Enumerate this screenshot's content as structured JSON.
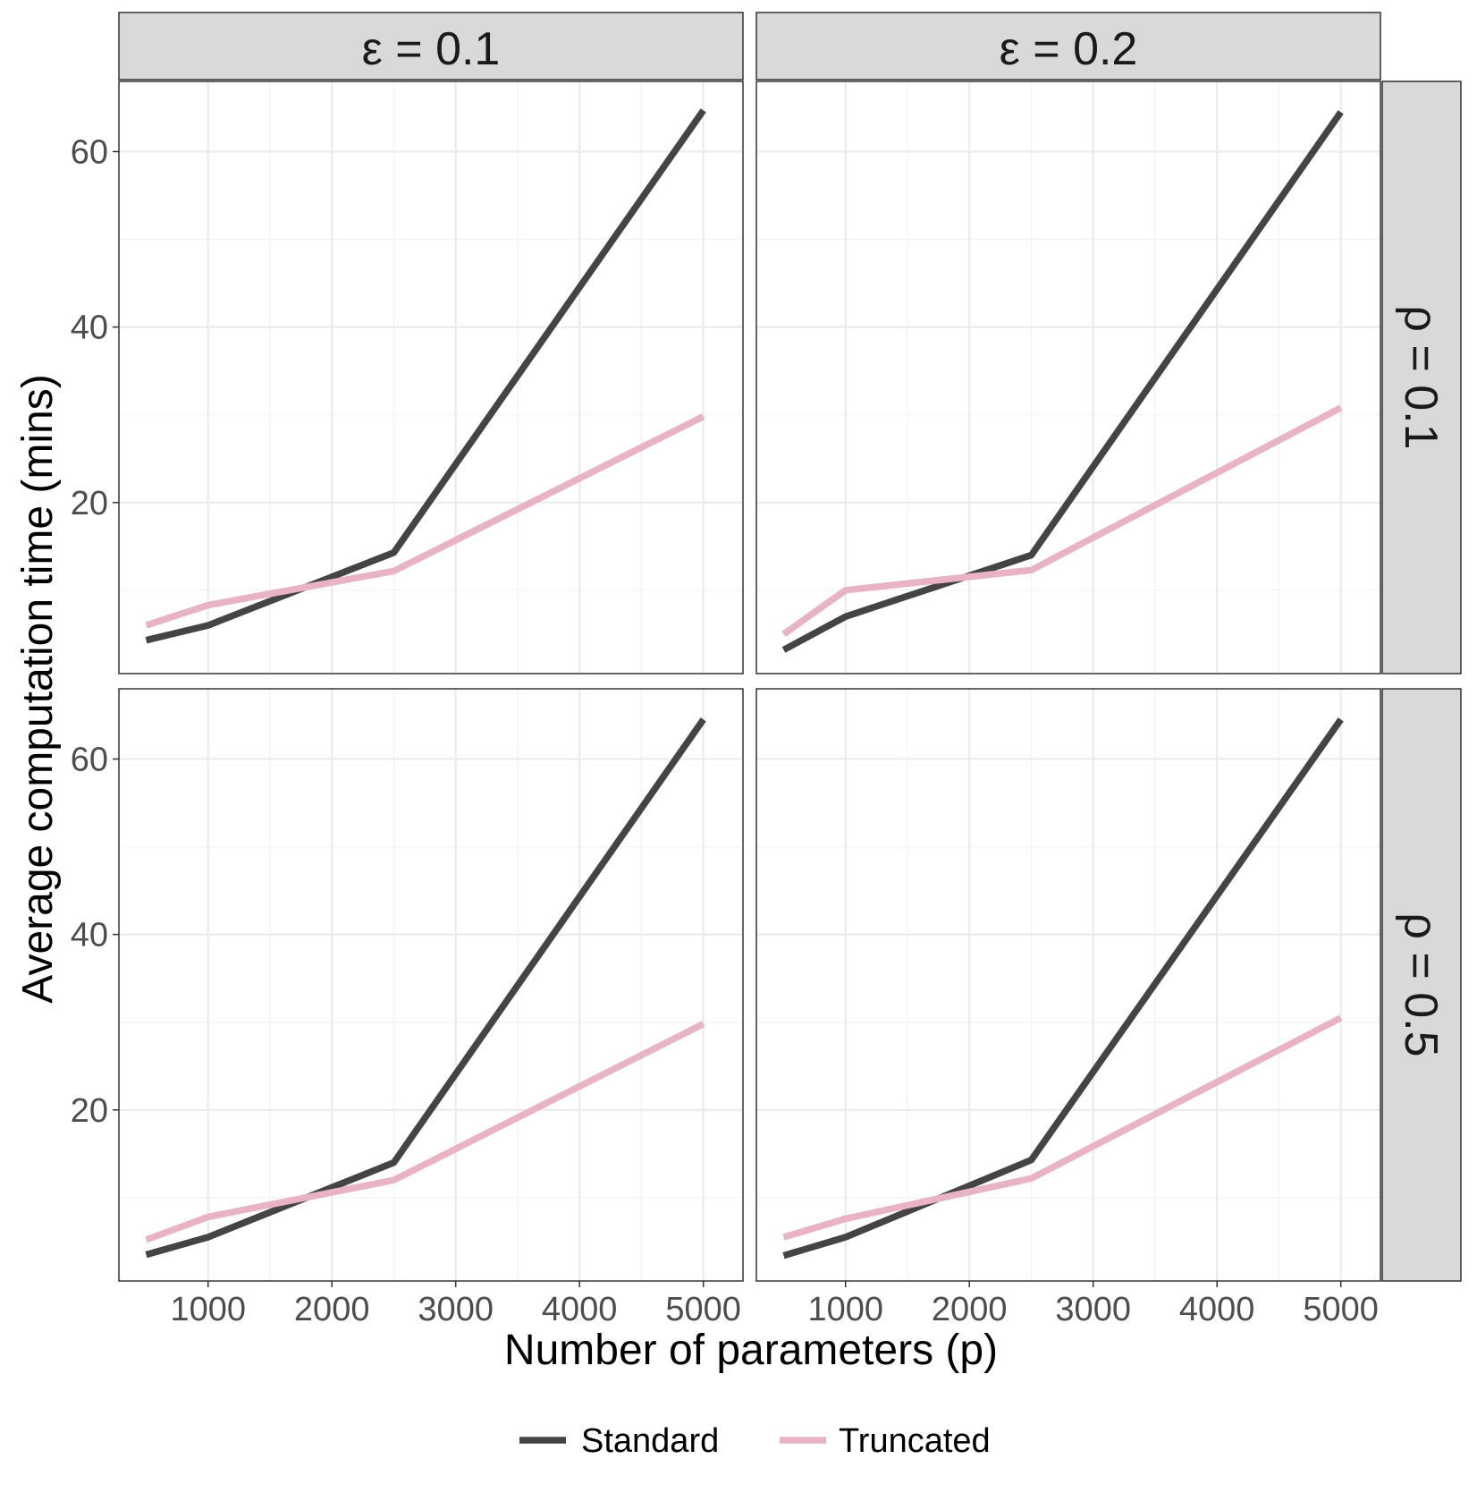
{
  "chart_data": {
    "type": "line",
    "xlabel": "Number of parameters (p)",
    "ylabel": "Average computation time (mins)",
    "x_ticks": [
      1000,
      2000,
      3000,
      4000,
      5000
    ],
    "x_tick_labels": [
      "1000",
      "2000",
      "3000",
      "4000",
      "5000"
    ],
    "y_ticks": [
      20,
      40,
      60
    ],
    "y_tick_labels": [
      "20",
      "40",
      "60"
    ],
    "xlim": [
      280,
      5320
    ],
    "ylim": [
      0.5,
      68.0
    ],
    "grid": true,
    "legend_position": "bottom",
    "column_labels": [
      "ε = 0.1",
      "ε = 0.2"
    ],
    "row_labels": [
      "ρ = 0.1",
      "ρ = 0.5"
    ],
    "legend": [
      {
        "name": "Standard",
        "color": "#444444"
      },
      {
        "name": "Truncated",
        "color": "#e8b3c2"
      }
    ],
    "x": [
      500,
      1000,
      2500,
      5000
    ],
    "panels": [
      {
        "column": "ε = 0.1",
        "row": "ρ = 0.1",
        "series": [
          {
            "name": "Standard",
            "values": [
              4.3,
              6.0,
              14.3,
              64.7
            ]
          },
          {
            "name": "Truncated",
            "values": [
              6.0,
              8.3,
              12.2,
              29.8
            ]
          }
        ]
      },
      {
        "column": "ε = 0.2",
        "row": "ρ = 0.1",
        "series": [
          {
            "name": "Standard",
            "values": [
              3.2,
              7.0,
              14.0,
              64.5
            ]
          },
          {
            "name": "Truncated",
            "values": [
              5.0,
              10.0,
              12.3,
              30.8
            ]
          }
        ]
      },
      {
        "column": "ε = 0.1",
        "row": "ρ = 0.5",
        "series": [
          {
            "name": "Standard",
            "values": [
              3.5,
              5.5,
              14.0,
              64.5
            ]
          },
          {
            "name": "Truncated",
            "values": [
              5.2,
              7.8,
              12.0,
              29.8
            ]
          }
        ]
      },
      {
        "column": "ε = 0.2",
        "row": "ρ = 0.5",
        "series": [
          {
            "name": "Standard",
            "values": [
              3.4,
              5.5,
              14.3,
              64.5
            ]
          },
          {
            "name": "Truncated",
            "values": [
              5.5,
              7.6,
              12.2,
              30.5
            ]
          }
        ]
      }
    ]
  }
}
